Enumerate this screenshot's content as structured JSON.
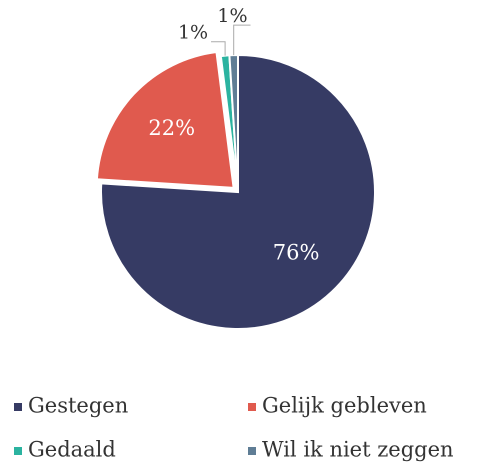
{
  "chart_data": {
    "type": "pie",
    "categories": [
      "Gestegen",
      "Gelijk gebleven",
      "Gedaald",
      "Wil ik niet zeggen"
    ],
    "values": [
      76,
      22,
      1,
      1
    ],
    "value_labels": [
      "76%",
      "22%",
      "1%",
      "1%"
    ],
    "colors": [
      "#363b64",
      "#e05a4e",
      "#2bb3a0",
      "#5f7d95"
    ],
    "legend": "bottom"
  }
}
